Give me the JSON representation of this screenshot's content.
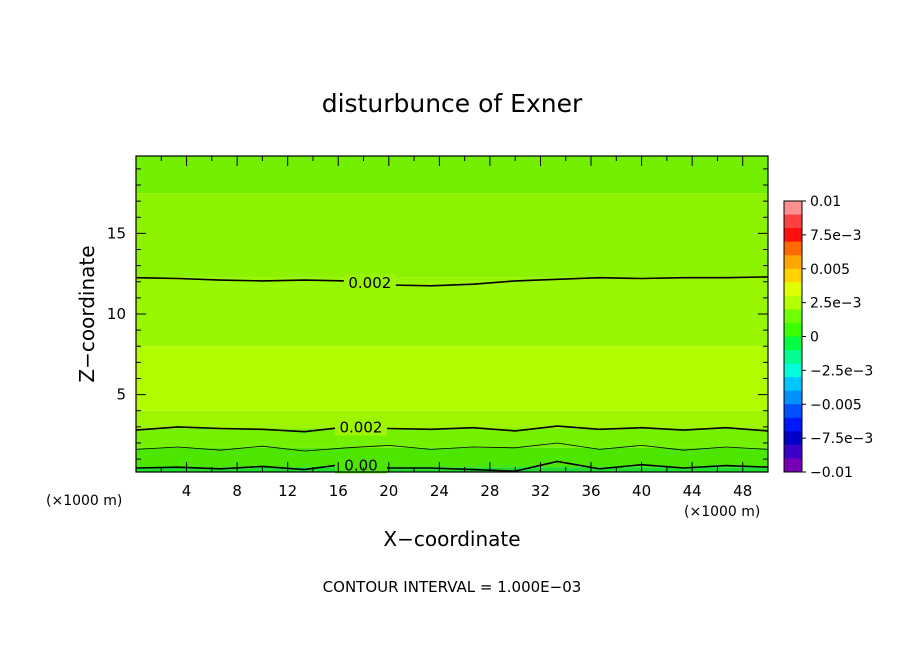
{
  "chart_data": {
    "type": "heatmap",
    "title": "disturbunce of Exner",
    "xlabel": "X−coordinate",
    "ylabel": "Z−coordinate",
    "x_unit": "(×1000 m)",
    "x_unit_right": "(×1000 m)",
    "xlim": [
      0,
      50
    ],
    "ylim": [
      0.2,
      19.8
    ],
    "x_ticks": [
      4,
      8,
      12,
      16,
      20,
      24,
      28,
      32,
      36,
      40,
      44,
      48
    ],
    "x_ticklabels": [
      "4",
      "8",
      "12",
      "16",
      "20",
      "24",
      "28",
      "32",
      "36",
      "40",
      "44",
      "48"
    ],
    "y_ticks": [
      5,
      10,
      15
    ],
    "y_ticklabels": [
      "5",
      "10",
      "15"
    ],
    "grid": false,
    "note": "CONTOUR INTERVAL = 1.000E−03",
    "colorbar": {
      "placement": "right",
      "vmin": -0.01,
      "vmax": 0.01,
      "ticks": [
        0.01,
        0.0075,
        0.005,
        0.0025,
        0,
        -0.0025,
        -0.005,
        -0.0075,
        -0.01
      ],
      "ticklabels": [
        "0.01",
        "7.5e−3",
        "0.005",
        "2.5e−3",
        "0",
        "−2.5e−3",
        "−0.005",
        "−7.5e−3",
        "−0.01"
      ],
      "levels_top_to_bottom": [
        "#ff9090",
        "#ff4040",
        "#ff1010",
        "#ff6a00",
        "#ffa500",
        "#ffd200",
        "#e0ff00",
        "#b4ff00",
        "#70ff00",
        "#3cff00",
        "#00ff40",
        "#00ff90",
        "#00ffd8",
        "#00c8ff",
        "#0090ff",
        "#0050ff",
        "#0018ff",
        "#0000c8",
        "#3c00c8",
        "#7800b4"
      ]
    },
    "contours": [
      {
        "label": "0.002",
        "z_level": 0.002,
        "z": [
          12.25,
          12.2,
          12.1,
          12.05,
          12.1,
          12.05,
          11.8,
          11.75,
          11.85,
          12.05,
          12.15,
          12.25,
          12.2,
          12.25,
          12.25,
          12.3
        ]
      },
      {
        "label": "0.002",
        "z_level": 0.002,
        "z": [
          2.8,
          3.0,
          2.9,
          2.85,
          2.7,
          3.0,
          2.9,
          2.85,
          2.95,
          2.75,
          3.05,
          2.85,
          2.95,
          2.8,
          2.95,
          2.75
        ]
      },
      {
        "label": "",
        "z_level": 0.001,
        "z": [
          1.6,
          1.75,
          1.55,
          1.8,
          1.5,
          1.7,
          1.85,
          1.6,
          1.75,
          1.7,
          2.0,
          1.6,
          1.85,
          1.55,
          1.75,
          1.6
        ]
      },
      {
        "label": "0.00",
        "z_level": 0.0,
        "z": [
          0.45,
          0.5,
          0.4,
          0.55,
          0.35,
          0.7,
          0.45,
          0.45,
          0.35,
          0.25,
          0.85,
          0.4,
          0.65,
          0.45,
          0.6,
          0.5
        ]
      }
    ],
    "contour_x": [
      0,
      3.33,
      6.67,
      10,
      13.33,
      16.67,
      20,
      23.33,
      26.67,
      30,
      33.33,
      36.67,
      40,
      43.33,
      46.67,
      50
    ],
    "filled_bands": [
      {
        "z_from": 17.5,
        "z_to": 19.8,
        "value": 0.0015,
        "color": "#72ee00"
      },
      {
        "z_from": 12.25,
        "z_to": 17.5,
        "value": 0.002,
        "color": "#8cf200"
      },
      {
        "z_from": 8.0,
        "z_to": 12.25,
        "value": 0.0022,
        "color": "#98f600"
      },
      {
        "z_from": 4.0,
        "z_to": 8.0,
        "value": 0.0027,
        "color": "#b2fc00"
      },
      {
        "z_from": 2.9,
        "z_to": 4.0,
        "value": 0.0023,
        "color": "#9ff500"
      },
      {
        "z_from": 1.7,
        "z_to": 2.9,
        "value": 0.0015,
        "color": "#74f000"
      },
      {
        "z_from": 0.5,
        "z_to": 1.7,
        "value": 0.0007,
        "color": "#4ce600"
      },
      {
        "z_from": 0.2,
        "z_to": 0.5,
        "value": -0.0003,
        "color": "#20dd30"
      }
    ]
  }
}
